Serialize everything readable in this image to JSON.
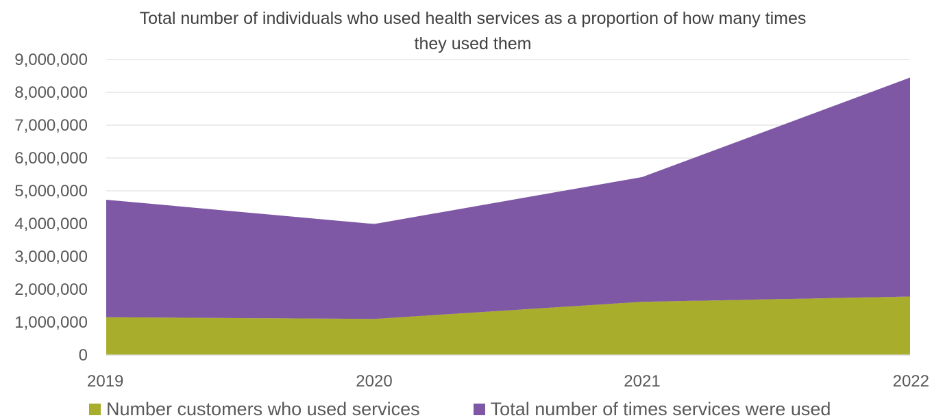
{
  "chart_data": {
    "type": "area",
    "stacked": true,
    "title_lines": [
      "Total number of individuals who used health services as a proportion of how many times",
      "they used them"
    ],
    "categories": [
      "2019",
      "2020",
      "2021",
      "2022"
    ],
    "series": [
      {
        "name": "Number customers who used services",
        "color": "#a8ad2b",
        "values": [
          1150000,
          1100000,
          1620000,
          1780000
        ]
      },
      {
        "name": "Total number of times services were used",
        "color": "#7f58a5",
        "values": [
          3580000,
          2890000,
          3800000,
          6670000
        ]
      }
    ],
    "ylim": [
      0,
      9000000
    ],
    "yticks": [
      "0",
      "1,000,000",
      "2,000,000",
      "3,000,000",
      "4,000,000",
      "5,000,000",
      "6,000,000",
      "7,000,000",
      "8,000,000",
      "9,000,000"
    ],
    "grid": true,
    "legend_position": "bottom"
  }
}
